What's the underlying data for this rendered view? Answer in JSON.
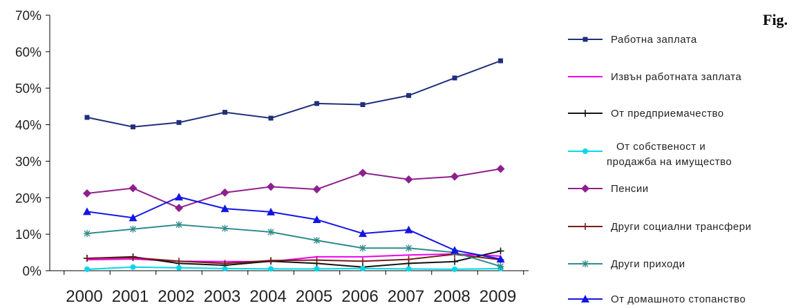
{
  "figure_label": "Fig.",
  "chart_data": {
    "type": "line",
    "title": "",
    "xlabel": "",
    "ylabel": "",
    "categories": [
      "2000",
      "2001",
      "2002",
      "2003",
      "2004",
      "2005",
      "2006",
      "2007",
      "2008",
      "2009"
    ],
    "ylim": [
      0,
      70
    ],
    "yticks": [
      "0%",
      "10%",
      "20%",
      "30%",
      "40%",
      "50%",
      "60%",
      "70%"
    ],
    "grid": false,
    "legend_position": "right",
    "series": [
      {
        "name": "Работна заплата",
        "color": "#1f2f7a",
        "marker": "square",
        "values": [
          42.0,
          39.4,
          40.6,
          43.4,
          41.8,
          45.8,
          45.5,
          48.0,
          52.8,
          57.5
        ]
      },
      {
        "name": "Извън работната заплата",
        "color": "#ee00ee",
        "marker": "none",
        "values": [
          3.0,
          3.2,
          2.6,
          2.5,
          2.5,
          3.8,
          3.8,
          4.3,
          4.6,
          4.0
        ]
      },
      {
        "name": "От предприемачество",
        "color": "#111111",
        "marker": "plus",
        "values": [
          3.4,
          3.8,
          2.0,
          1.5,
          2.6,
          2.0,
          1.0,
          2.0,
          2.5,
          5.4
        ]
      },
      {
        "name": "От собственост и продажба на имущество",
        "color": "#00d8e8",
        "marker": "circle",
        "values": [
          0.4,
          1.0,
          0.8,
          0.6,
          0.5,
          0.5,
          0.6,
          0.5,
          0.4,
          0.6
        ]
      },
      {
        "name": "Пенсии",
        "color": "#8e1f8e",
        "marker": "diamond",
        "values": [
          21.2,
          22.6,
          17.2,
          21.4,
          23.0,
          22.3,
          26.8,
          25.0,
          25.8,
          27.9
        ]
      },
      {
        "name": "Други социални трансфери",
        "color": "#7a1a1a",
        "marker": "plus",
        "values": [
          3.4,
          3.6,
          2.6,
          2.0,
          2.8,
          2.9,
          2.6,
          3.1,
          4.5,
          3.0
        ]
      },
      {
        "name": "Други приходи",
        "color": "#2e8b8b",
        "marker": "star",
        "values": [
          10.2,
          11.4,
          12.6,
          11.6,
          10.6,
          8.3,
          6.2,
          6.2,
          5.0,
          1.2
        ]
      },
      {
        "name": "От домашното стопанство",
        "color": "#1414e6",
        "marker": "triangle",
        "values": [
          16.2,
          14.5,
          20.2,
          17.0,
          16.1,
          14.0,
          10.2,
          11.2,
          5.6,
          3.2
        ]
      }
    ]
  }
}
